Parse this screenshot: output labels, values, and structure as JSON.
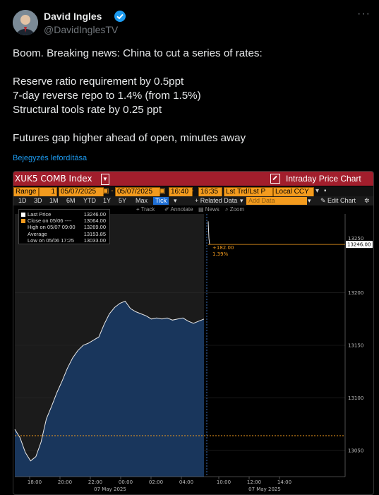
{
  "author": {
    "name": "David Ingles",
    "handle": "@DavidInglesTV",
    "more_icon": "more-dots-icon",
    "verified_icon": "verified-badge-icon",
    "verified_color": "#1d9bf0"
  },
  "tweet": {
    "lines": [
      "Boom. Breaking news: China to cut a series of rates:",
      "",
      "Reserve ratio requirement by 0.5ppt",
      "7-day reverse repo to 1.4% (from 1.5%)",
      "Structural tools rate by 0.25 ppt",
      "",
      "Futures gap higher ahead of open, minutes away"
    ],
    "translate_link": "Bejegyzés lefordítása"
  },
  "terminal": {
    "ticker": "XUK5 COMB Index",
    "ticker_dropdown": "▼",
    "title": "Intraday Price Chart",
    "header_color": "#a21e2c",
    "accent_color": "#f39b1e",
    "range_label": "Range",
    "range_num": "1",
    "date_from": "05/07/2025",
    "date_to": "05/07/2025",
    "time_from": "16:40",
    "time_to": "16:35",
    "mode": "Lst Trd/Lst P",
    "currency": "Local CCY",
    "period_buttons": [
      "1D",
      "3D",
      "1M",
      "6M",
      "YTD",
      "1Y",
      "5Y",
      "Max"
    ],
    "tick_button": "Tick",
    "related": "+ Related Data",
    "add_data": "Add Data",
    "edit_chart": "Edit Chart",
    "tools": [
      "Track",
      "Annotate",
      "News",
      "Zoom"
    ],
    "legend": [
      {
        "label": "Last Price",
        "value": "13246.00",
        "color": "#ffffff"
      },
      {
        "label": "Close on 05/06 ----",
        "value": "13064.00",
        "color": "#f39b1e"
      },
      {
        "label": "High on 05/07 09:00",
        "value": "13269.00",
        "color": "#ffffff"
      },
      {
        "label": "Average",
        "value": "13153.85",
        "color": "#ffffff"
      },
      {
        "label": "Low on 05/06 17:25",
        "value": "13033.00",
        "color": "#ffffff"
      }
    ],
    "change_abs": "+182.00",
    "change_pct": "1.39%",
    "last_price_tag": "13246.00",
    "partial_tick": "13250"
  },
  "chart_data": {
    "type": "area",
    "ylim": [
      13025,
      13275
    ],
    "yticks": [
      13050,
      13100,
      13150,
      13200
    ],
    "xtick_labels": [
      "18:00",
      "20:00",
      "22:00",
      "00:00",
      "02:00",
      "04:00",
      "10:00",
      "12:00",
      "14:00"
    ],
    "date_labels": [
      "07 May 2025",
      "07 May 2025"
    ],
    "prev_close": 13064,
    "last_price": 13246,
    "series": [
      {
        "values": [
          13070,
          13062,
          13048,
          13040,
          13044,
          13058,
          13080,
          13092,
          13105,
          13116,
          13128,
          13138,
          13145,
          13150,
          13152,
          13155,
          13158,
          13170,
          13180,
          13186,
          13190,
          13192,
          13185,
          13182,
          13180,
          13178,
          13175,
          13176,
          13175,
          13176,
          13174,
          13175,
          13176,
          13173,
          13171,
          13173,
          13175
        ]
      },
      {
        "values": [
          13268,
          13252,
          13246
        ]
      }
    ]
  }
}
